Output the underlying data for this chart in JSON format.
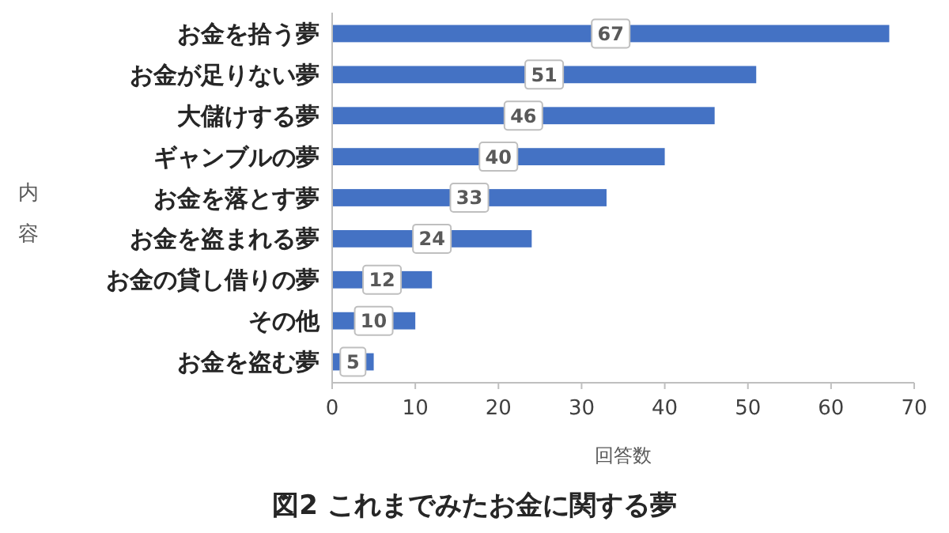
{
  "chart_data": {
    "type": "bar",
    "orientation": "horizontal",
    "title": "図2 これまでみたお金に関する夢",
    "xlabel": "回答数",
    "ylabel": "内容",
    "categories": [
      "お金を拾う夢",
      "お金が足りない夢",
      "大儲けする夢",
      "ギャンブルの夢",
      "お金を落とす夢",
      "お金を盗まれる夢",
      "お金の貸し借りの夢",
      "その他",
      "お金を盗む夢"
    ],
    "values": [
      67,
      51,
      46,
      40,
      33,
      24,
      12,
      10,
      5
    ],
    "color": "#4472c4",
    "xlim": [
      0,
      70
    ],
    "xticks": [
      0,
      10,
      20,
      30,
      40,
      50,
      60,
      70
    ],
    "grid": false,
    "data_labels": true
  }
}
